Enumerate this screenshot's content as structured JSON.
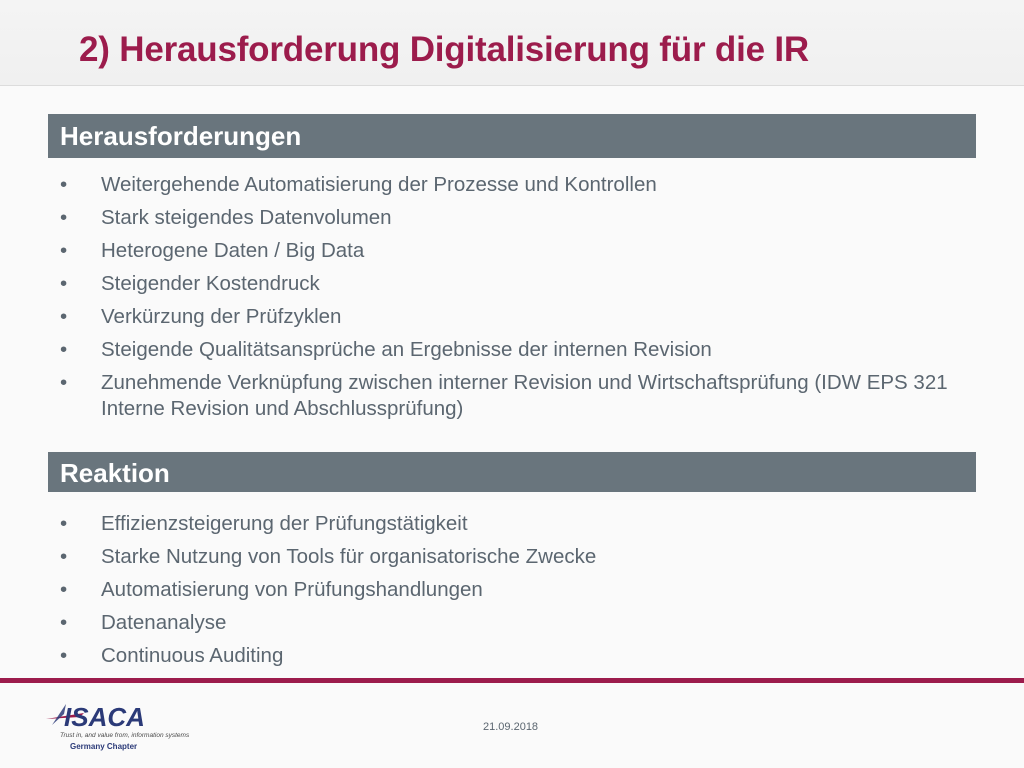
{
  "slide": {
    "title": "2) Herausforderung Digitalisierung für die IR",
    "date": "21.09.2018"
  },
  "sections": {
    "challenges": {
      "header": "Herausforderungen",
      "items": [
        "Weitergehende Automatisierung der Prozesse und Kontrollen",
        "Stark steigendes Datenvolumen",
        "Heterogene Daten / Big Data",
        "Steigender Kostendruck",
        "Verkürzung der Prüfzyklen",
        "Steigende Qualitätsansprüche an Ergebnisse der internen Revision",
        "Zunehmende Verknüpfung zwischen interner Revision und Wirtschaftsprüfung (IDW EPS 321 Interne Revision und Abschlussprüfung)"
      ]
    },
    "reaction": {
      "header": "Reaktion",
      "items": [
        "Effizienzsteigerung der Prüfungstätigkeit",
        "Starke Nutzung von Tools für organisatorische Zwecke",
        "Automatisierung von Prüfungshandlungen",
        "Datenanalyse",
        "Continuous Auditing"
      ]
    }
  },
  "logo": {
    "name": "ISACA",
    "tagline": "Trust in, and value from, information systems",
    "chapter": "Germany Chapter"
  },
  "bullet_glyph": "•",
  "colors": {
    "accent": "#9c1c4c",
    "header_bg": "#69757d",
    "body_text": "#5b6670",
    "logo_blue": "#2b3a78"
  }
}
